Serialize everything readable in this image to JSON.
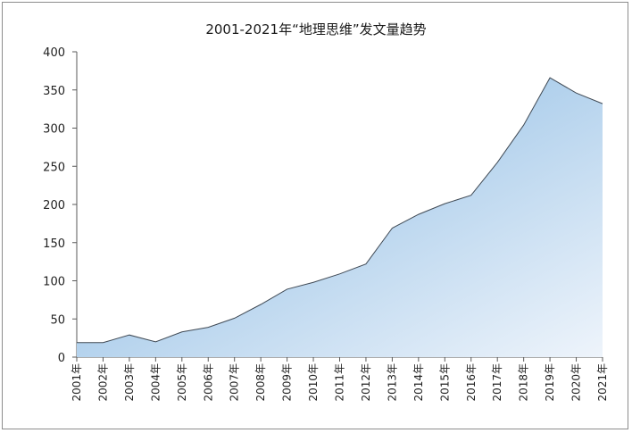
{
  "chart_data": {
    "type": "area",
    "title": "2001-2021年“地理思维”发文量趋势",
    "xlabel": "",
    "ylabel": "",
    "ylim": [
      0,
      400
    ],
    "yticks": [
      "0",
      "50",
      "100",
      "150",
      "200",
      "250",
      "300",
      "350",
      "400"
    ],
    "categories": [
      "2001年",
      "2002年",
      "2003年",
      "2004年",
      "2005年",
      "2006年",
      "2007年",
      "2008年",
      "2009年",
      "2010年",
      "2011年",
      "2012年",
      "2013年",
      "2014年",
      "2015年",
      "2016年",
      "2017年",
      "2018年",
      "2019年",
      "2020年",
      "2021年"
    ],
    "values": [
      19,
      19,
      29,
      20,
      33,
      39,
      51,
      69,
      89,
      98,
      109,
      122,
      169,
      187,
      201,
      212,
      255,
      304,
      366,
      346,
      332
    ],
    "grid": false,
    "colors": {
      "fill_light": "#eef4fb",
      "fill_dark": "#b0d0ec",
      "line": "#404a55"
    }
  }
}
